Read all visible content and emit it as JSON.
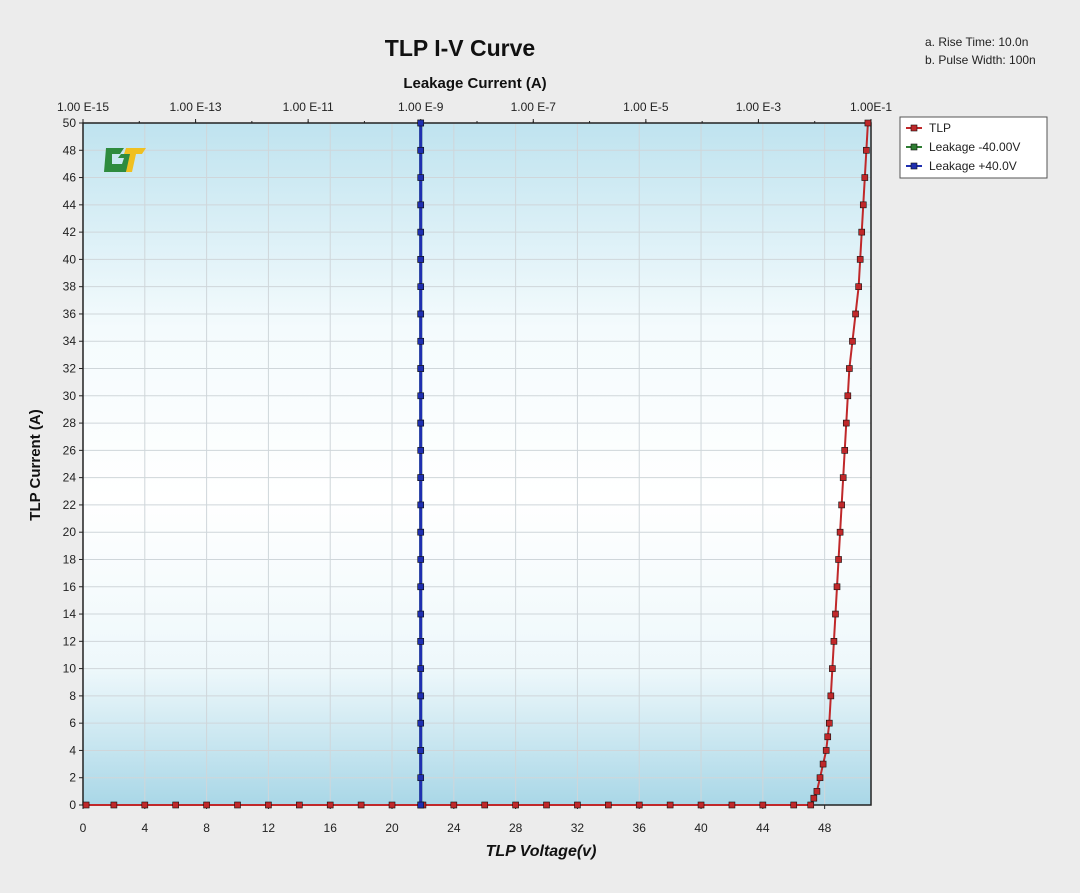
{
  "chart_data": {
    "type": "line",
    "title": "TLP I-V Curve",
    "xlabel": "TLP Voltage(v)",
    "ylabel": "TLP Current (A)",
    "x2label": "Leakage Current (A)",
    "notes": [
      "a. Rise Time: 10.0n",
      "b. Pulse Width: 100n"
    ],
    "xlim": [
      0,
      51
    ],
    "ylim": [
      0,
      50
    ],
    "xticks": [
      0,
      4,
      8,
      12,
      16,
      20,
      24,
      28,
      32,
      36,
      40,
      44,
      48
    ],
    "yticks": [
      0,
      2,
      4,
      6,
      8,
      10,
      12,
      14,
      16,
      18,
      20,
      22,
      24,
      26,
      28,
      30,
      32,
      34,
      36,
      38,
      40,
      42,
      44,
      46,
      48,
      50
    ],
    "x2_log_range": [
      -15,
      -1
    ],
    "x2ticks": [
      {
        "label": "1.00 E-15",
        "exp": -15
      },
      {
        "label": "1.00 E-13",
        "exp": -13
      },
      {
        "label": "1.00 E-11",
        "exp": -11
      },
      {
        "label": "1.00 E-9",
        "exp": -9
      },
      {
        "label": "1.00 E-7",
        "exp": -7
      },
      {
        "label": "1.00 E-5",
        "exp": -5
      },
      {
        "label": "1.00 E-3",
        "exp": -3
      },
      {
        "label": "1.00E-1",
        "exp": -1
      }
    ],
    "grid": true,
    "legend_position": "top-right",
    "series": [
      {
        "name": "TLP",
        "color": "#c0282a",
        "axis": "voltage",
        "points": [
          [
            0.2,
            0
          ],
          [
            2,
            0
          ],
          [
            4,
            0
          ],
          [
            6,
            0
          ],
          [
            8,
            0
          ],
          [
            10,
            0
          ],
          [
            12,
            0
          ],
          [
            14,
            0
          ],
          [
            16,
            0
          ],
          [
            18,
            0
          ],
          [
            20,
            0
          ],
          [
            22,
            0
          ],
          [
            24,
            0
          ],
          [
            26,
            0
          ],
          [
            28,
            0
          ],
          [
            30,
            0
          ],
          [
            32,
            0
          ],
          [
            34,
            0
          ],
          [
            36,
            0
          ],
          [
            38,
            0
          ],
          [
            40,
            0
          ],
          [
            42,
            0
          ],
          [
            44,
            0
          ],
          [
            46,
            0
          ],
          [
            47.1,
            0
          ],
          [
            47.3,
            0.5
          ],
          [
            47.5,
            1
          ],
          [
            47.7,
            2
          ],
          [
            47.9,
            3
          ],
          [
            48.1,
            4
          ],
          [
            48.2,
            5
          ],
          [
            48.3,
            6
          ],
          [
            48.4,
            8
          ],
          [
            48.5,
            10
          ],
          [
            48.6,
            12
          ],
          [
            48.7,
            14
          ],
          [
            48.8,
            16
          ],
          [
            48.9,
            18
          ],
          [
            49.0,
            20
          ],
          [
            49.1,
            22
          ],
          [
            49.2,
            24
          ],
          [
            49.3,
            26
          ],
          [
            49.4,
            28
          ],
          [
            49.5,
            30
          ],
          [
            49.6,
            32
          ],
          [
            49.8,
            34
          ],
          [
            50.0,
            36
          ],
          [
            50.2,
            38
          ],
          [
            50.3,
            40
          ],
          [
            50.4,
            42
          ],
          [
            50.5,
            44
          ],
          [
            50.6,
            46
          ],
          [
            50.7,
            48
          ],
          [
            50.8,
            50
          ]
        ]
      },
      {
        "name": "Leakage -40.00V",
        "color": "#2e7d32",
        "axis": "leakage",
        "points": [
          [
            -9,
            0
          ],
          [
            -9,
            4
          ],
          [
            -9,
            8
          ],
          [
            -9,
            12
          ],
          [
            -9,
            16
          ],
          [
            -9,
            20
          ],
          [
            -9,
            24
          ],
          [
            -9,
            28
          ],
          [
            -9,
            32
          ],
          [
            -9,
            36
          ],
          [
            -9,
            40
          ],
          [
            -9,
            44
          ],
          [
            -9,
            48
          ],
          [
            -9,
            50
          ]
        ]
      },
      {
        "name": "Leakage +40.0V",
        "color": "#1f2fb0",
        "axis": "leakage",
        "points": [
          [
            -9,
            0
          ],
          [
            -9,
            2
          ],
          [
            -9,
            4
          ],
          [
            -9,
            6
          ],
          [
            -9,
            8
          ],
          [
            -9,
            10
          ],
          [
            -9,
            12
          ],
          [
            -9,
            14
          ],
          [
            -9,
            16
          ],
          [
            -9,
            18
          ],
          [
            -9,
            20
          ],
          [
            -9,
            22
          ],
          [
            -9,
            24
          ],
          [
            -9,
            26
          ],
          [
            -9,
            28
          ],
          [
            -9,
            30
          ],
          [
            -9,
            32
          ],
          [
            -9,
            34
          ],
          [
            -9,
            36
          ],
          [
            -9,
            38
          ],
          [
            -9,
            40
          ],
          [
            -9,
            42
          ],
          [
            -9,
            44
          ],
          [
            -9,
            46
          ],
          [
            -9,
            48
          ],
          [
            -9,
            50
          ]
        ]
      }
    ]
  }
}
